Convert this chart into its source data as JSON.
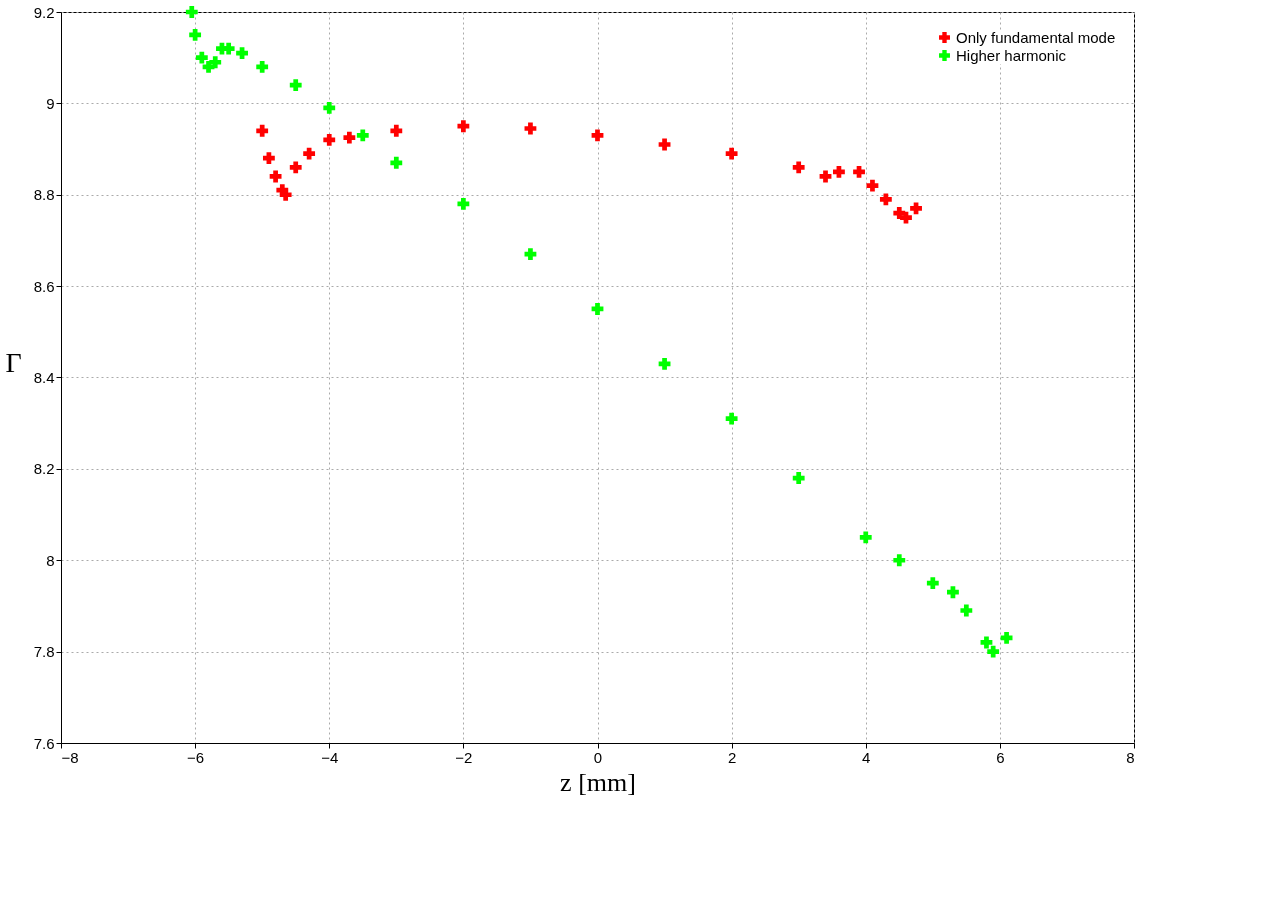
{
  "chart_data": {
    "type": "scatter",
    "xlabel": "z [mm]",
    "ylabel": "Γ",
    "xlim": [
      -8,
      8
    ],
    "xticks": [
      -8,
      -6,
      -4,
      -2,
      0,
      2,
      4,
      6,
      8
    ],
    "ylim": [
      7.6,
      9.2
    ],
    "yticks": [
      7.6,
      7.8,
      8,
      8.2,
      8.4,
      8.6,
      8.8,
      9,
      9.2
    ],
    "grid": true,
    "legend": "top right",
    "marker": "cross",
    "series": [
      {
        "name": "Only fundamental mode",
        "color": "#ff0000",
        "x": [
          -5,
          -4.9,
          -4.8,
          -4.7,
          -4.65,
          -4.5,
          -4.3,
          -4,
          -3.7,
          -3,
          -2,
          -1,
          0,
          1,
          2,
          3,
          3.4,
          3.6,
          3.9,
          4.1,
          4.3,
          4.5,
          4.6,
          4.75
        ],
        "values": [
          8.94,
          8.88,
          8.84,
          8.81,
          8.8,
          8.86,
          8.89,
          8.92,
          8.925,
          8.94,
          8.95,
          8.945,
          8.93,
          8.91,
          8.89,
          8.86,
          8.84,
          8.85,
          8.85,
          8.82,
          8.79,
          8.76,
          8.75,
          8.77
        ]
      },
      {
        "name": "Higher harmonic",
        "color": "#00ff00",
        "x": [
          -6.05,
          -6,
          -5.9,
          -5.8,
          -5.7,
          -5.6,
          -5.5,
          -5.3,
          -5,
          -4.5,
          -4,
          -3.5,
          -3,
          -2,
          -1,
          0,
          1,
          2,
          3,
          4,
          4.5,
          5,
          5.3,
          5.5,
          5.8,
          5.9,
          6.1
        ],
        "values": [
          9.2,
          9.15,
          9.1,
          9.08,
          9.09,
          9.12,
          9.12,
          9.11,
          9.08,
          9.04,
          8.99,
          8.93,
          8.87,
          8.78,
          8.67,
          8.55,
          8.43,
          8.31,
          8.18,
          8.05,
          8,
          7.95,
          7.93,
          7.89,
          7.82,
          7.8,
          7.83
        ]
      }
    ]
  }
}
